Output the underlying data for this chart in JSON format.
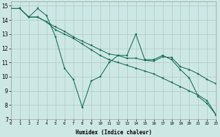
{
  "xlabel": "Humidex (Indice chaleur)",
  "background_color": "#cde8e4",
  "grid_color": "#b0cccc",
  "line_color": "#1a6b5a",
  "series": [
    {
      "x": [
        0,
        1,
        2,
        3,
        4,
        5,
        6,
        7,
        8,
        9,
        10,
        11,
        12,
        13,
        14,
        15,
        16,
        17,
        18,
        19,
        20,
        21,
        22,
        23
      ],
      "y": [
        14.8,
        14.8,
        14.2,
        14.8,
        14.3,
        12.8,
        10.6,
        9.8,
        7.85,
        9.7,
        10.0,
        11.0,
        11.5,
        11.5,
        13.0,
        11.2,
        11.2,
        11.5,
        11.2,
        10.5,
        9.9,
        8.6,
        8.1,
        7.3
      ]
    },
    {
      "x": [
        0,
        1,
        2,
        3,
        4,
        5,
        6,
        7,
        8,
        9,
        10,
        11,
        12,
        13,
        14,
        15,
        16,
        17,
        18,
        19,
        20,
        21,
        22,
        23
      ],
      "y": [
        14.8,
        14.8,
        14.2,
        14.2,
        13.85,
        13.5,
        13.2,
        12.8,
        12.5,
        12.2,
        11.9,
        11.6,
        11.5,
        11.3,
        11.3,
        11.15,
        11.1,
        11.4,
        11.35,
        10.7,
        10.5,
        10.2,
        9.8,
        9.5
      ]
    },
    {
      "x": [
        0,
        1,
        2,
        3,
        4,
        5,
        6,
        7,
        8,
        9,
        10,
        11,
        12,
        13,
        14,
        15,
        16,
        17,
        18,
        19,
        20,
        21,
        22,
        23
      ],
      "y": [
        14.8,
        14.8,
        14.2,
        14.2,
        13.85,
        13.3,
        13.0,
        12.7,
        12.3,
        11.9,
        11.5,
        11.2,
        11.0,
        10.8,
        10.6,
        10.4,
        10.2,
        9.9,
        9.6,
        9.3,
        9.0,
        8.7,
        8.3,
        7.3
      ]
    }
  ],
  "xlim": [
    0,
    23
  ],
  "ylim": [
    7,
    15.3
  ],
  "yticks": [
    7,
    8,
    9,
    10,
    11,
    12,
    13,
    14,
    15
  ],
  "xtick_labels": [
    "0",
    "1",
    "2",
    "3",
    "4",
    "5",
    "6",
    "7",
    "8",
    "9",
    "10",
    "11",
    "12",
    "13",
    "14",
    "15",
    "16",
    "17",
    "18",
    "19",
    "20",
    "21",
    "22",
    "23"
  ]
}
